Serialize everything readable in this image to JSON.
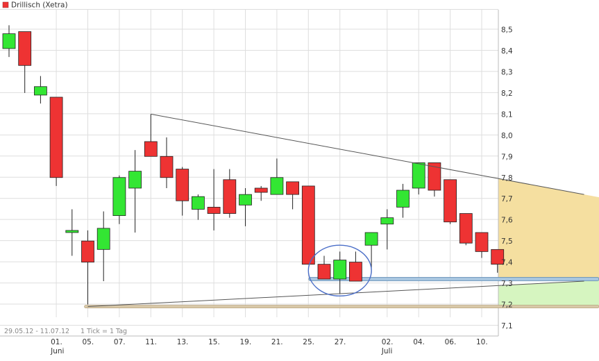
{
  "colors": {
    "up": "#33e633",
    "down": "#ee3333",
    "grid": "#dedede",
    "axis_text": "#333333",
    "trend_line": "#555555",
    "forecast_upper_fill": "#f5dfa0",
    "forecast_lower_fill": "#d6f5c0",
    "support_band": "#a8c6e0",
    "circle": "#4a6ec8"
  },
  "chart_data": {
    "type": "candlestick",
    "title": "Drillisch (Xetra)",
    "legend": {
      "label": "Drillisch (Xetra)",
      "color": "#ee3333",
      "placement": "top-left"
    },
    "footer": {
      "range": "29.05.12 - 11.07.12",
      "tick": "1 Tick = 1 Tag"
    },
    "ylim": [
      7.05,
      8.57
    ],
    "y_ticks": [
      "7,1",
      "7,2",
      "7,3",
      "7,4",
      "7,5",
      "7,6",
      "7,7",
      "7,8",
      "7,9",
      "8,0",
      "8,1",
      "8,2",
      "8,3",
      "8,4",
      "8,5"
    ],
    "y_tick_values": [
      7.1,
      7.2,
      7.3,
      7.4,
      7.5,
      7.6,
      7.7,
      7.8,
      7.9,
      8.0,
      8.1,
      8.2,
      8.3,
      8.4,
      8.5
    ],
    "x_ticks": [
      {
        "index": 3,
        "label": "01.",
        "sub": "Juni"
      },
      {
        "index": 5,
        "label": "05.",
        "sub": ""
      },
      {
        "index": 7,
        "label": "07.",
        "sub": ""
      },
      {
        "index": 9,
        "label": "11.",
        "sub": ""
      },
      {
        "index": 11,
        "label": "13.",
        "sub": ""
      },
      {
        "index": 13,
        "label": "15.",
        "sub": ""
      },
      {
        "index": 15,
        "label": "19.",
        "sub": ""
      },
      {
        "index": 17,
        "label": "21.",
        "sub": ""
      },
      {
        "index": 19,
        "label": "25.",
        "sub": ""
      },
      {
        "index": 21,
        "label": "27.",
        "sub": ""
      },
      {
        "index": 24,
        "label": "02.",
        "sub": "Juli"
      },
      {
        "index": 26,
        "label": "04.",
        "sub": ""
      },
      {
        "index": 28,
        "label": "06.",
        "sub": ""
      },
      {
        "index": 30,
        "label": "10.",
        "sub": ""
      }
    ],
    "candles": [
      {
        "o": 8.41,
        "h": 8.52,
        "l": 8.37,
        "c": 8.48
      },
      {
        "o": 8.49,
        "h": 8.49,
        "l": 8.2,
        "c": 8.33
      },
      {
        "o": 8.19,
        "h": 8.28,
        "l": 8.15,
        "c": 8.23
      },
      {
        "o": 8.18,
        "h": 8.18,
        "l": 7.76,
        "c": 7.8
      },
      {
        "o": 7.54,
        "h": 7.65,
        "l": 7.43,
        "c": 7.55
      },
      {
        "o": 7.5,
        "h": 7.55,
        "l": 7.2,
        "c": 7.4
      },
      {
        "o": 7.46,
        "h": 7.64,
        "l": 7.31,
        "c": 7.56
      },
      {
        "o": 7.62,
        "h": 7.81,
        "l": 7.58,
        "c": 7.8
      },
      {
        "o": 7.75,
        "h": 7.93,
        "l": 7.54,
        "c": 7.83
      },
      {
        "o": 7.97,
        "h": 8.1,
        "l": 7.9,
        "c": 7.9
      },
      {
        "o": 7.9,
        "h": 7.99,
        "l": 7.75,
        "c": 7.8
      },
      {
        "o": 7.84,
        "h": 7.85,
        "l": 7.62,
        "c": 7.69
      },
      {
        "o": 7.65,
        "h": 7.72,
        "l": 7.6,
        "c": 7.71
      },
      {
        "o": 7.66,
        "h": 7.84,
        "l": 7.55,
        "c": 7.63
      },
      {
        "o": 7.79,
        "h": 7.84,
        "l": 7.61,
        "c": 7.63
      },
      {
        "o": 7.67,
        "h": 7.75,
        "l": 7.57,
        "c": 7.72
      },
      {
        "o": 7.75,
        "h": 7.76,
        "l": 7.69,
        "c": 7.73
      },
      {
        "o": 7.72,
        "h": 7.89,
        "l": 7.72,
        "c": 7.8
      },
      {
        "o": 7.78,
        "h": 7.78,
        "l": 7.65,
        "c": 7.72
      },
      {
        "o": 7.76,
        "h": 7.76,
        "l": 7.39,
        "c": 7.39
      },
      {
        "o": 7.39,
        "h": 7.43,
        "l": 7.32,
        "c": 7.32
      },
      {
        "o": 7.32,
        "h": 7.45,
        "l": 7.25,
        "c": 7.41
      },
      {
        "o": 7.4,
        "h": 7.45,
        "l": 7.31,
        "c": 7.31
      },
      {
        "o": 7.48,
        "h": 7.54,
        "l": 7.35,
        "c": 7.54
      },
      {
        "o": 7.58,
        "h": 7.65,
        "l": 7.46,
        "c": 7.61
      },
      {
        "o": 7.66,
        "h": 7.77,
        "l": 7.61,
        "c": 7.74
      },
      {
        "o": 7.75,
        "h": 7.87,
        "l": 7.72,
        "c": 7.87
      },
      {
        "o": 7.87,
        "h": 7.87,
        "l": 7.71,
        "c": 7.74
      },
      {
        "o": 7.79,
        "h": 7.79,
        "l": 7.58,
        "c": 7.59
      },
      {
        "o": 7.63,
        "h": 7.63,
        "l": 7.48,
        "c": 7.49
      },
      {
        "o": 7.54,
        "h": 7.54,
        "l": 7.42,
        "c": 7.45
      },
      {
        "o": 7.46,
        "h": 7.46,
        "l": 7.35,
        "c": 7.39
      }
    ],
    "overlays": {
      "upper_trendline": {
        "from": {
          "index": 9,
          "value": 8.1
        },
        "to": {
          "index": 36.5,
          "value": 7.72
        }
      },
      "lower_trendline": {
        "from": {
          "index": 5,
          "value": 7.19
        },
        "to": {
          "index": 36.5,
          "value": 7.31
        }
      },
      "support_level": {
        "from_index": 19.2,
        "value": 7.32
      },
      "base_level": {
        "from_index": 5,
        "value": 7.19
      },
      "highlight_circle": {
        "center_index": 21,
        "center_value": 7.36,
        "radius_index": 2.0,
        "radius_value": 0.12
      }
    },
    "grid": true
  }
}
